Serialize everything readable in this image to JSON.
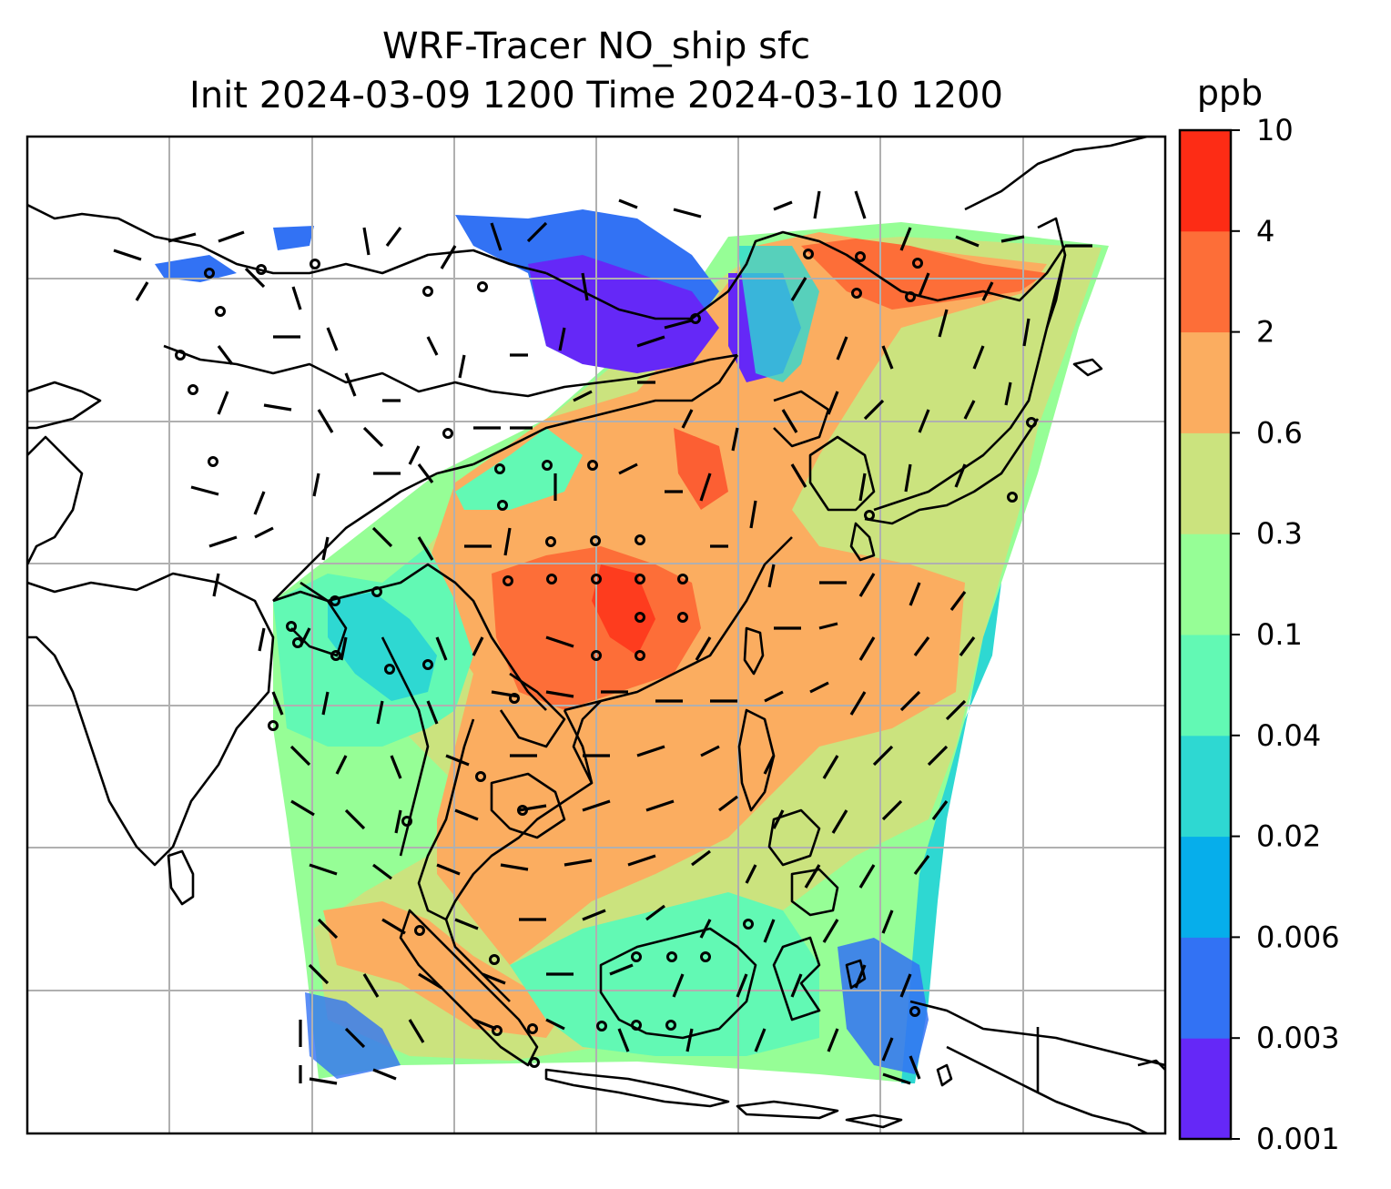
{
  "title": {
    "line1": "WRF-Tracer NO_ship sfc",
    "line2": "Init 2024-03-09 1200 Time 2024-03-10 1200"
  },
  "colorbar": {
    "unit": "ppb",
    "tick_labels": [
      "0.001",
      "0.003",
      "0.006",
      "0.02",
      "0.04",
      "0.1",
      "0.3",
      "0.6",
      "2",
      "4",
      "10"
    ],
    "colors": [
      "#6528f7",
      "#3272f4",
      "#06aeeb",
      "#2ed8d2",
      "#62f9b4",
      "#96fe96",
      "#cbe37e",
      "#fbad60",
      "#fd6e38",
      "#fd2c15"
    ]
  },
  "map": {
    "field": "NO_ship surface concentration",
    "overlays": [
      "coastlines",
      "country borders",
      "lat/lon gridlines",
      "wind barbs",
      "calm wind circles"
    ],
    "region": "South and East Asia, Maritime Continent"
  }
}
